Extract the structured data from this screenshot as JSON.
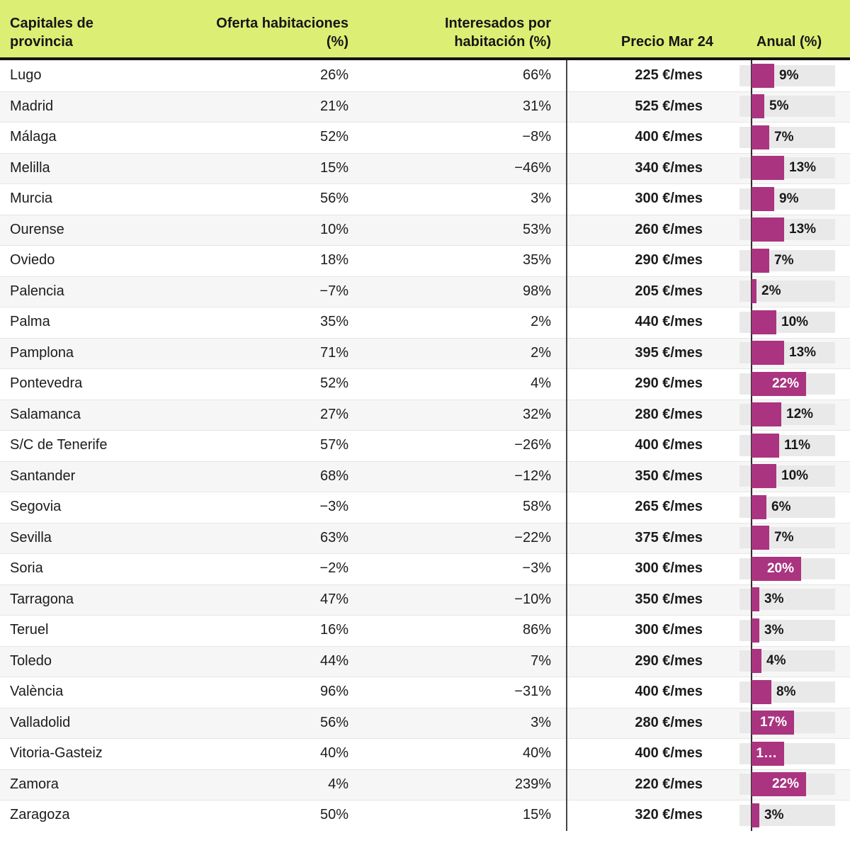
{
  "chart_data": {
    "type": "table",
    "title": "",
    "columns": [
      {
        "label": "Capitales de provincia",
        "align": "left"
      },
      {
        "label": "Oferta habitaciones (%)",
        "align": "right"
      },
      {
        "label": "Interesados por habitación (%)",
        "align": "right"
      },
      {
        "label": "Precio Mar 24",
        "align": "right"
      },
      {
        "label": "Anual (%)",
        "align": "center",
        "subtype": "bar"
      }
    ],
    "colors": {
      "header_bg": "#ddee74",
      "bar": "#aa3480",
      "bar_track": "#e9e9e9",
      "header_border": "#141414"
    },
    "bar_axis": {
      "zero_at_axis": true,
      "approx_max_pct": 22
    },
    "rows": [
      {
        "capital": "Lugo",
        "oferta": "26%",
        "interesados": "66%",
        "precio": "225 €/mes",
        "anual_pct": 9,
        "anual_label": "9%",
        "label_inside": false
      },
      {
        "capital": "Madrid",
        "oferta": "21%",
        "interesados": "31%",
        "precio": "525 €/mes",
        "anual_pct": 5,
        "anual_label": "5%",
        "label_inside": false
      },
      {
        "capital": "Málaga",
        "oferta": "52%",
        "interesados": "−8%",
        "precio": "400 €/mes",
        "anual_pct": 7,
        "anual_label": "7%",
        "label_inside": false
      },
      {
        "capital": "Melilla",
        "oferta": "15%",
        "interesados": "−46%",
        "precio": "340 €/mes",
        "anual_pct": 13,
        "anual_label": "13%",
        "label_inside": false
      },
      {
        "capital": "Murcia",
        "oferta": "56%",
        "interesados": "3%",
        "precio": "300 €/mes",
        "anual_pct": 9,
        "anual_label": "9%",
        "label_inside": false
      },
      {
        "capital": "Ourense",
        "oferta": "10%",
        "interesados": "53%",
        "precio": "260 €/mes",
        "anual_pct": 13,
        "anual_label": "13%",
        "label_inside": false
      },
      {
        "capital": "Oviedo",
        "oferta": "18%",
        "interesados": "35%",
        "precio": "290 €/mes",
        "anual_pct": 7,
        "anual_label": "7%",
        "label_inside": false
      },
      {
        "capital": "Palencia",
        "oferta": "−7%",
        "interesados": "98%",
        "precio": "205 €/mes",
        "anual_pct": 2,
        "anual_label": "2%",
        "label_inside": false
      },
      {
        "capital": "Palma",
        "oferta": "35%",
        "interesados": "2%",
        "precio": "440 €/mes",
        "anual_pct": 10,
        "anual_label": "10%",
        "label_inside": false
      },
      {
        "capital": "Pamplona",
        "oferta": "71%",
        "interesados": "2%",
        "precio": "395 €/mes",
        "anual_pct": 13,
        "anual_label": "13%",
        "label_inside": false
      },
      {
        "capital": "Pontevedra",
        "oferta": "52%",
        "interesados": "4%",
        "precio": "290 €/mes",
        "anual_pct": 22,
        "anual_label": "22%",
        "label_inside": true
      },
      {
        "capital": "Salamanca",
        "oferta": "27%",
        "interesados": "32%",
        "precio": "280 €/mes",
        "anual_pct": 12,
        "anual_label": "12%",
        "label_inside": false
      },
      {
        "capital": "S/C de Tenerife",
        "oferta": "57%",
        "interesados": "−26%",
        "precio": "400 €/mes",
        "anual_pct": 11,
        "anual_label": "11%",
        "label_inside": false
      },
      {
        "capital": "Santander",
        "oferta": "68%",
        "interesados": "−12%",
        "precio": "350 €/mes",
        "anual_pct": 10,
        "anual_label": "10%",
        "label_inside": false
      },
      {
        "capital": "Segovia",
        "oferta": "−3%",
        "interesados": "58%",
        "precio": "265 €/mes",
        "anual_pct": 6,
        "anual_label": "6%",
        "label_inside": false
      },
      {
        "capital": "Sevilla",
        "oferta": "63%",
        "interesados": "−22%",
        "precio": "375 €/mes",
        "anual_pct": 7,
        "anual_label": "7%",
        "label_inside": false
      },
      {
        "capital": "Soria",
        "oferta": "−2%",
        "interesados": "−3%",
        "precio": "300 €/mes",
        "anual_pct": 20,
        "anual_label": "20%",
        "label_inside": true
      },
      {
        "capital": "Tarragona",
        "oferta": "47%",
        "interesados": "−10%",
        "precio": "350 €/mes",
        "anual_pct": 3,
        "anual_label": "3%",
        "label_inside": false
      },
      {
        "capital": "Teruel",
        "oferta": "16%",
        "interesados": "86%",
        "precio": "300 €/mes",
        "anual_pct": 3,
        "anual_label": "3%",
        "label_inside": false
      },
      {
        "capital": "Toledo",
        "oferta": "44%",
        "interesados": "7%",
        "precio": "290 €/mes",
        "anual_pct": 4,
        "anual_label": "4%",
        "label_inside": false
      },
      {
        "capital": "València",
        "oferta": "96%",
        "interesados": "−31%",
        "precio": "400 €/mes",
        "anual_pct": 8,
        "anual_label": "8%",
        "label_inside": false
      },
      {
        "capital": "Valladolid",
        "oferta": "56%",
        "interesados": "3%",
        "precio": "280 €/mes",
        "anual_pct": 17,
        "anual_label": "17%",
        "label_inside": true
      },
      {
        "capital": "Vitoria-Gasteiz",
        "oferta": "40%",
        "interesados": "40%",
        "precio": "400 €/mes",
        "anual_pct": 13,
        "anual_label": "1…",
        "label_inside": true
      },
      {
        "capital": "Zamora",
        "oferta": "4%",
        "interesados": "239%",
        "precio": "220 €/mes",
        "anual_pct": 22,
        "anual_label": "22%",
        "label_inside": true
      },
      {
        "capital": "Zaragoza",
        "oferta": "50%",
        "interesados": "15%",
        "precio": "320 €/mes",
        "anual_pct": 3,
        "anual_label": "3%",
        "label_inside": false
      }
    ]
  }
}
